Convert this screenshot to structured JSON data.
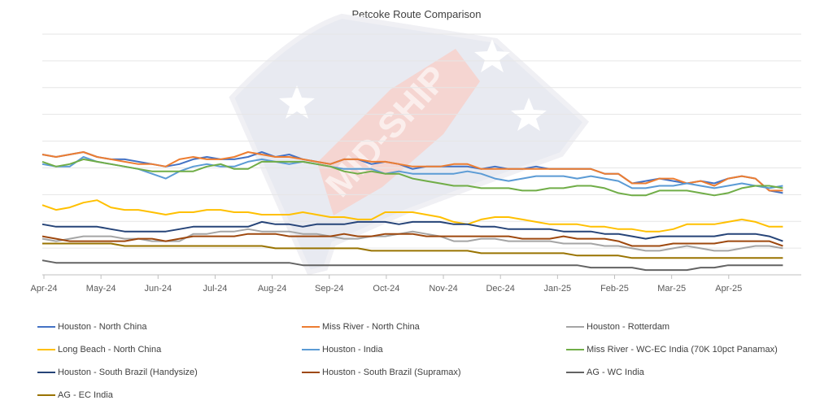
{
  "chart_data": {
    "type": "line",
    "title": "Petcoke Route Comparison",
    "x_tick_labels": [
      "Apr-24",
      "May-24",
      "Jun-24",
      "Jul-24",
      "Aug-24",
      "Sep-24",
      "Oct-24",
      "Nov-24",
      "Dec-24",
      "Jan-25",
      "Feb-25",
      "Mar-25",
      "Apr-25"
    ],
    "grid": true,
    "legend_position": "bottom",
    "watermark": "MID-SHIP",
    "points_per_series": 55,
    "series": [
      {
        "name": "Houston - North China",
        "color": "#4472C4",
        "values": [
          50,
          49,
          50,
          51,
          49,
          48,
          48,
          47,
          46,
          45,
          46,
          48,
          49,
          48,
          48,
          49,
          51,
          49,
          50,
          48,
          47,
          46,
          48,
          48,
          46,
          47,
          46,
          44,
          45,
          45,
          45,
          45,
          44,
          45,
          44,
          44,
          45,
          44,
          44,
          44,
          44,
          42,
          42,
          38,
          39,
          40,
          39,
          38,
          39,
          38,
          40,
          41,
          40,
          35,
          34
        ]
      },
      {
        "name": "Miss River - North China",
        "color": "#ED7D31",
        "values": [
          50,
          49,
          50,
          51,
          49,
          48,
          47,
          46,
          46,
          45,
          48,
          49,
          48,
          48,
          49,
          51,
          50,
          49,
          49,
          48,
          47,
          46,
          48,
          48,
          47,
          47,
          46,
          45,
          45,
          45,
          46,
          46,
          44,
          44,
          44,
          44,
          44,
          44,
          44,
          44,
          44,
          42,
          42,
          38,
          38,
          40,
          40,
          38,
          39,
          37,
          40,
          41,
          40,
          35,
          35
        ]
      },
      {
        "name": "Houston - Rotterdam",
        "color": "#A5A5A5",
        "values": [
          15,
          14,
          15,
          16,
          16,
          16,
          15,
          15,
          14,
          14,
          14,
          17,
          17,
          18,
          18,
          19,
          18,
          18,
          18,
          17,
          17,
          16,
          15,
          15,
          16,
          16,
          17,
          18,
          17,
          16,
          14,
          14,
          15,
          15,
          14,
          14,
          14,
          14,
          13,
          13,
          13,
          12,
          12,
          11,
          10,
          10,
          11,
          12,
          11,
          10,
          10,
          11,
          12,
          12,
          11
        ]
      },
      {
        "name": "Long Beach - North China",
        "color": "#FFC000",
        "values": [
          29,
          27,
          28,
          30,
          31,
          28,
          27,
          27,
          26,
          25,
          26,
          26,
          27,
          27,
          26,
          26,
          25,
          25,
          25,
          26,
          25,
          24,
          24,
          23,
          23,
          26,
          26,
          26,
          25,
          24,
          22,
          21,
          23,
          24,
          24,
          23,
          22,
          21,
          21,
          21,
          20,
          20,
          19,
          19,
          18,
          18,
          19,
          21,
          21,
          21,
          22,
          23,
          22,
          20,
          20
        ]
      },
      {
        "name": "Houston - India",
        "color": "#5B9BD5",
        "values": [
          46,
          45,
          45,
          49,
          47,
          46,
          45,
          44,
          42,
          40,
          43,
          45,
          46,
          45,
          45,
          47,
          48,
          47,
          46,
          47,
          46,
          45,
          44,
          44,
          44,
          42,
          43,
          42,
          42,
          42,
          42,
          43,
          42,
          40,
          39,
          40,
          41,
          41,
          41,
          40,
          41,
          40,
          39,
          36,
          36,
          37,
          37,
          38,
          37,
          36,
          37,
          38,
          37,
          36,
          37
        ]
      },
      {
        "name": "Miss River - WC-EC India (70K 10pct Panamax)",
        "color": "#70AD47",
        "values": [
          47,
          45,
          46,
          48,
          47,
          46,
          45,
          44,
          43,
          43,
          43,
          43,
          45,
          46,
          44,
          44,
          47,
          47,
          47,
          47,
          46,
          45,
          43,
          42,
          43,
          42,
          42,
          40,
          39,
          38,
          37,
          37,
          36,
          36,
          36,
          35,
          35,
          36,
          36,
          37,
          37,
          36,
          34,
          33,
          33,
          35,
          35,
          35,
          34,
          33,
          34,
          36,
          37,
          37,
          36
        ]
      },
      {
        "name": "Houston - South Brazil (Handysize)",
        "color": "#264478",
        "values": [
          21,
          20,
          20,
          20,
          20,
          19,
          18,
          18,
          18,
          18,
          19,
          20,
          20,
          20,
          20,
          20,
          22,
          21,
          21,
          20,
          21,
          21,
          21,
          22,
          22,
          22,
          21,
          22,
          22,
          22,
          21,
          21,
          20,
          20,
          19,
          19,
          19,
          19,
          18,
          18,
          18,
          17,
          17,
          16,
          15,
          16,
          16,
          16,
          16,
          16,
          17,
          17,
          17,
          16,
          14
        ]
      },
      {
        "name": "Houston - South Brazil (Supramax)",
        "color": "#9E480E",
        "values": [
          16,
          15,
          14,
          14,
          14,
          14,
          14,
          15,
          15,
          14,
          15,
          16,
          16,
          16,
          16,
          17,
          17,
          17,
          16,
          16,
          16,
          16,
          17,
          16,
          16,
          17,
          17,
          17,
          16,
          16,
          16,
          16,
          16,
          16,
          16,
          15,
          15,
          15,
          16,
          15,
          15,
          15,
          14,
          12,
          12,
          12,
          13,
          13,
          13,
          13,
          14,
          14,
          14,
          14,
          12
        ]
      },
      {
        "name": "AG - WC India",
        "color": "#636363",
        "values": [
          6,
          5,
          5,
          5,
          5,
          5,
          5,
          5,
          5,
          5,
          5,
          5,
          5,
          5,
          5,
          5,
          5,
          5,
          5,
          4,
          4,
          4,
          4,
          4,
          4,
          4,
          4,
          4,
          4,
          4,
          4,
          4,
          4,
          4,
          4,
          4,
          4,
          4,
          4,
          4,
          3,
          3,
          3,
          3,
          2,
          2,
          2,
          2,
          3,
          3,
          4,
          4,
          4,
          4,
          4
        ]
      },
      {
        "name": "AG - EC India",
        "color": "#997300",
        "values": [
          13,
          13,
          13,
          13,
          13,
          13,
          12,
          12,
          12,
          12,
          12,
          12,
          12,
          12,
          12,
          12,
          12,
          11,
          11,
          11,
          11,
          11,
          11,
          11,
          10,
          10,
          10,
          10,
          10,
          10,
          10,
          10,
          9,
          9,
          9,
          9,
          9,
          9,
          9,
          8,
          8,
          8,
          8,
          7,
          7,
          7,
          7,
          7,
          7,
          7,
          7,
          7,
          7,
          7,
          7
        ]
      }
    ]
  }
}
